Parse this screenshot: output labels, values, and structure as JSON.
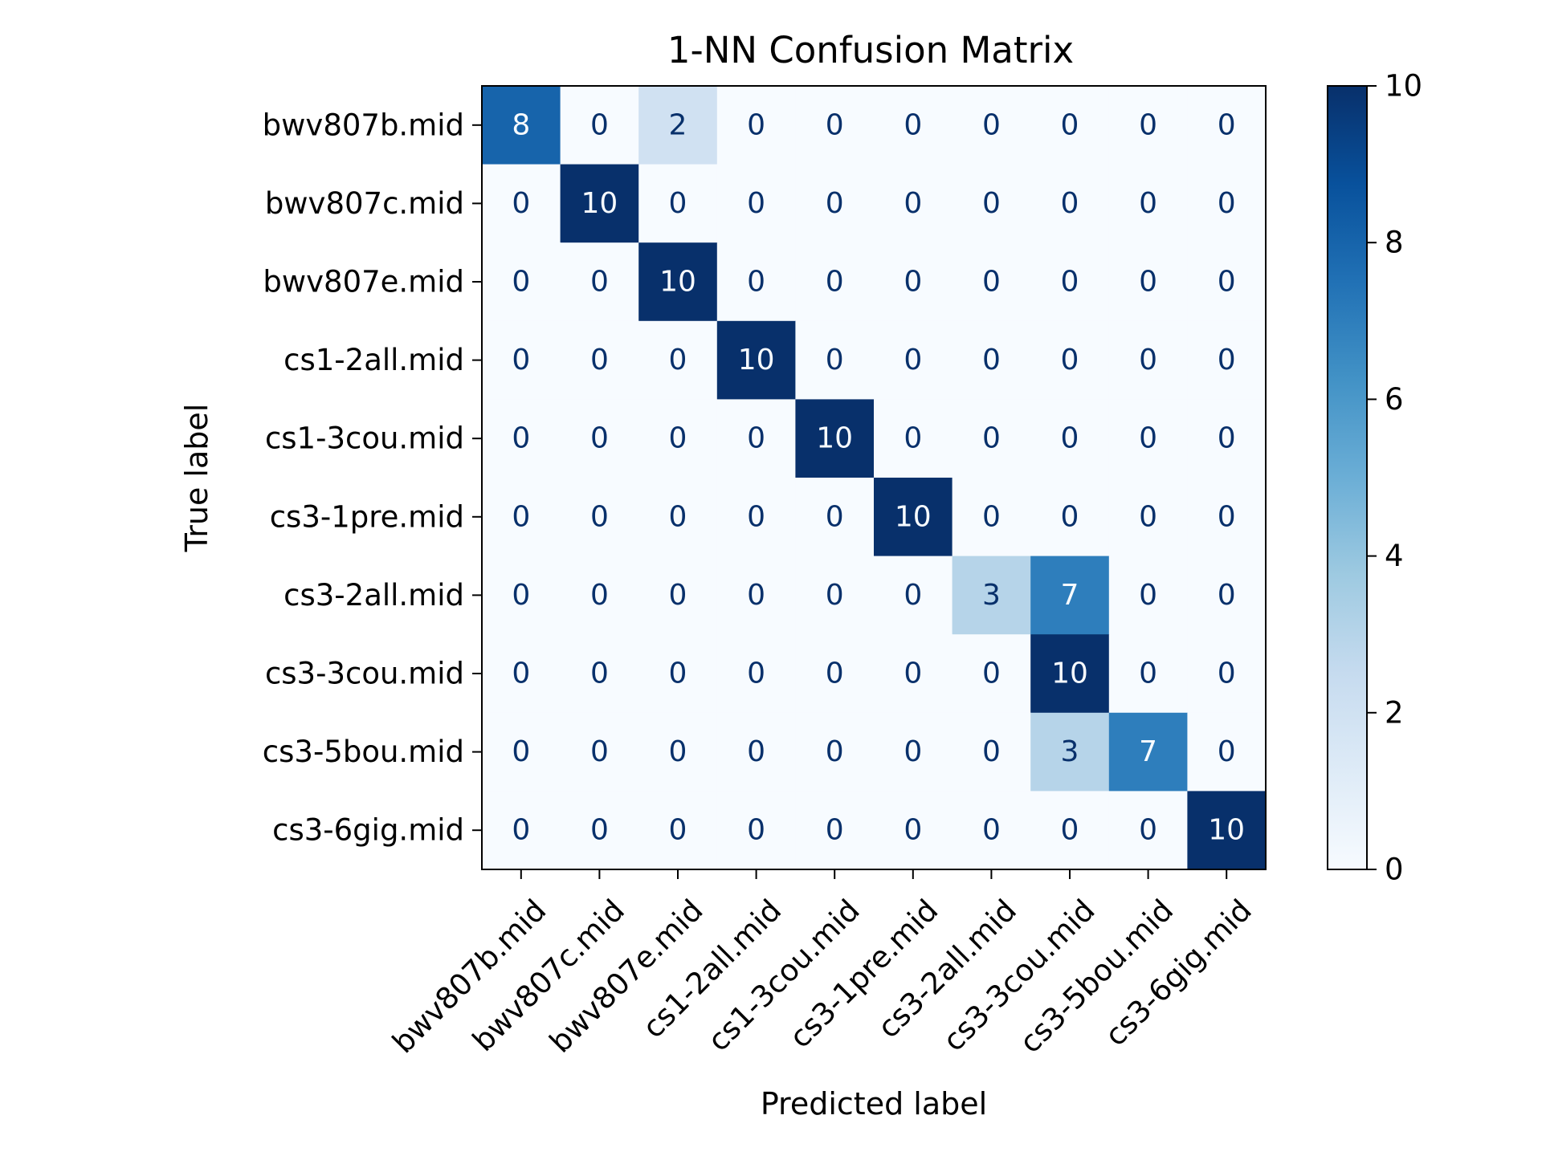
{
  "chart_data": {
    "type": "heatmap",
    "title": "1-NN Confusion Matrix",
    "xlabel": "Predicted label",
    "ylabel": "True label",
    "categories": [
      "bwv807b.mid",
      "bwv807c.mid",
      "bwv807e.mid",
      "cs1-2all.mid",
      "cs1-3cou.mid",
      "cs3-1pre.mid",
      "cs3-2all.mid",
      "cs3-3cou.mid",
      "cs3-5bou.mid",
      "cs3-6gig.mid"
    ],
    "matrix": [
      [
        8,
        0,
        2,
        0,
        0,
        0,
        0,
        0,
        0,
        0
      ],
      [
        0,
        10,
        0,
        0,
        0,
        0,
        0,
        0,
        0,
        0
      ],
      [
        0,
        0,
        10,
        0,
        0,
        0,
        0,
        0,
        0,
        0
      ],
      [
        0,
        0,
        0,
        10,
        0,
        0,
        0,
        0,
        0,
        0
      ],
      [
        0,
        0,
        0,
        0,
        10,
        0,
        0,
        0,
        0,
        0
      ],
      [
        0,
        0,
        0,
        0,
        0,
        10,
        0,
        0,
        0,
        0
      ],
      [
        0,
        0,
        0,
        0,
        0,
        0,
        3,
        7,
        0,
        0
      ],
      [
        0,
        0,
        0,
        0,
        0,
        0,
        0,
        10,
        0,
        0
      ],
      [
        0,
        0,
        0,
        0,
        0,
        0,
        0,
        3,
        7,
        0
      ],
      [
        0,
        0,
        0,
        0,
        0,
        0,
        0,
        0,
        0,
        10
      ]
    ],
    "colormap": "Blues",
    "vmin": 0,
    "vmax": 10,
    "colorbar_ticks": [
      0,
      2,
      4,
      6,
      8,
      10
    ],
    "grid": false
  }
}
